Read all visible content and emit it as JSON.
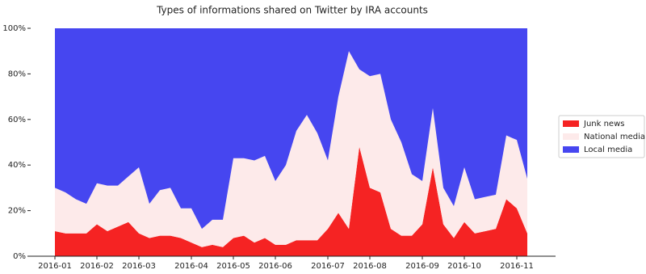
{
  "chart_data": {
    "type": "stacked-area",
    "title": "Types of informations shared on Twitter by IRA accounts",
    "categories": [
      "2016-01",
      null,
      null,
      null,
      "2016-02",
      null,
      null,
      null,
      "2016-03",
      null,
      null,
      null,
      null,
      "2016-04",
      null,
      null,
      null,
      "2016-05",
      null,
      null,
      null,
      "2016-06",
      null,
      null,
      null,
      null,
      "2016-07",
      null,
      null,
      null,
      "2016-08",
      null,
      null,
      null,
      null,
      "2016-09",
      null,
      null,
      null,
      "2016-10",
      null,
      null,
      null,
      null,
      "2016-11",
      null
    ],
    "series": [
      {
        "name": "Junk news",
        "color": "#f52323",
        "values": [
          11,
          10,
          10,
          10,
          14,
          11,
          13,
          15,
          10,
          8,
          9,
          9,
          8,
          6,
          4,
          5,
          4,
          8,
          9,
          6,
          8,
          5,
          5,
          7,
          7,
          7,
          12,
          19,
          12,
          48,
          30,
          28,
          12,
          9,
          9,
          14,
          39,
          14,
          8,
          15,
          10,
          11,
          12,
          25,
          21,
          10
        ]
      },
      {
        "name": "National media",
        "color": "#fdeaea",
        "values": [
          19,
          18,
          15,
          13,
          18,
          20,
          18,
          20,
          29,
          15,
          20,
          21,
          13,
          15,
          8,
          11,
          12,
          35,
          34,
          36,
          36,
          28,
          35,
          48,
          55,
          47,
          30,
          51,
          78,
          34,
          49,
          52,
          48,
          41,
          27,
          19,
          26,
          16,
          14,
          24,
          15,
          15,
          15,
          28,
          30,
          24
        ]
      },
      {
        "name": "Local media",
        "color": "#4646f0",
        "values": [
          70,
          72,
          75,
          77,
          68,
          69,
          69,
          65,
          61,
          77,
          71,
          70,
          79,
          79,
          88,
          84,
          84,
          57,
          57,
          58,
          56,
          67,
          60,
          45,
          38,
          46,
          58,
          30,
          10,
          18,
          21,
          20,
          40,
          50,
          64,
          67,
          35,
          70,
          78,
          61,
          75,
          74,
          73,
          47,
          49,
          66
        ]
      }
    ],
    "ylim": [
      0,
      100
    ],
    "yticks": [
      {
        "value": 0,
        "label": "0%"
      },
      {
        "value": 20,
        "label": "20%"
      },
      {
        "value": 40,
        "label": "40%"
      },
      {
        "value": 60,
        "label": "60%"
      },
      {
        "value": 80,
        "label": "80%"
      },
      {
        "value": 100,
        "label": "100%"
      }
    ],
    "legend": "right"
  }
}
